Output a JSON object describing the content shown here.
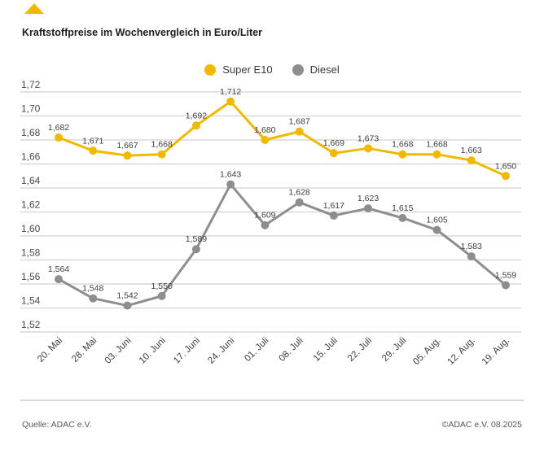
{
  "brand": {
    "accent_yellow": "#F0B900",
    "diesel_gray": "#8E8E8E",
    "grid_color": "#D9D9D9",
    "title_color": "#1D1D1B",
    "label_color": "#3D3D3C",
    "footer_color": "#575756"
  },
  "footer": {
    "source": "Quelle: ADAC e.V.",
    "copyright": "©ADAC e.V. 08.2025"
  },
  "chart_data": {
    "type": "line",
    "title": "Kraftstoffpreise im Wochenvergleich in Euro/Liter",
    "categories": [
      "20. Mai",
      "28. Mai",
      "03. Juni",
      "10. Juni",
      "17. Juni",
      "24. Juni",
      "01. Juli",
      "08. Juli",
      "15. Juli",
      "22. Juli",
      "29. Juli",
      "05. Aug.",
      "12. Aug.",
      "19. Aug."
    ],
    "series": [
      {
        "name": "Super E10",
        "color": "#F0B900",
        "values": [
          1.682,
          1.671,
          1.667,
          1.668,
          1.692,
          1.712,
          1.68,
          1.687,
          1.669,
          1.673,
          1.668,
          1.668,
          1.663,
          1.65
        ]
      },
      {
        "name": "Diesel",
        "color": "#8E8E8E",
        "values": [
          1.564,
          1.548,
          1.542,
          1.55,
          1.589,
          1.643,
          1.609,
          1.628,
          1.617,
          1.623,
          1.615,
          1.605,
          1.583,
          1.559
        ]
      }
    ],
    "ylim": [
      1.52,
      1.72
    ],
    "ytick_step": 0.02,
    "grid": true,
    "legend_position": "top",
    "point_labels": true,
    "decimal_separator": ","
  }
}
